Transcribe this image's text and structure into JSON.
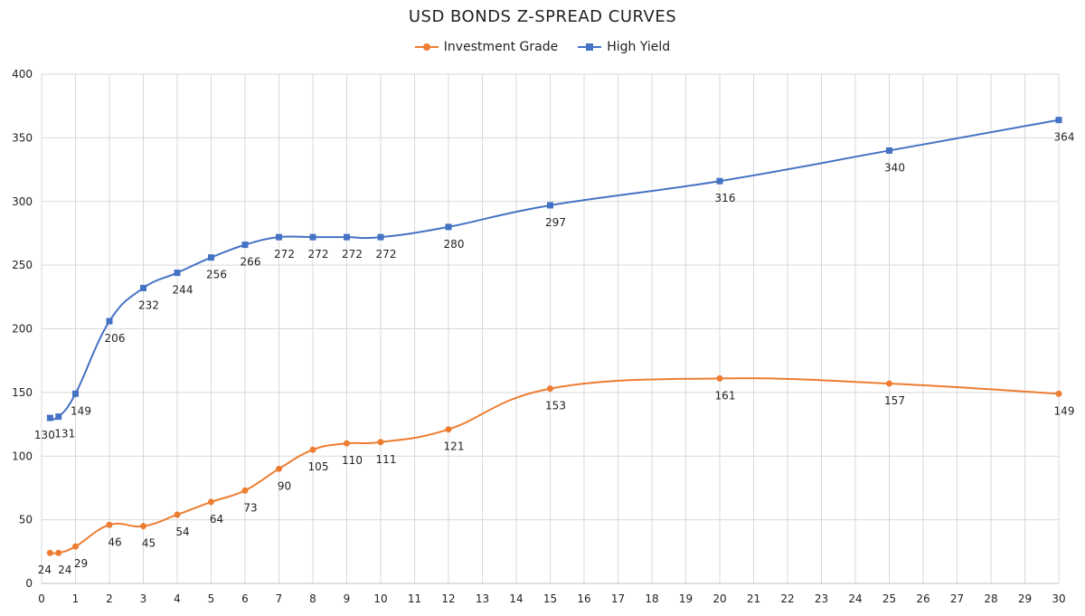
{
  "chart_data": {
    "type": "line",
    "title": "USD BONDS Z-SPREAD CURVES",
    "xlabel": "",
    "ylabel": "",
    "xlim": [
      0,
      30
    ],
    "ylim": [
      0,
      400
    ],
    "x_ticks": [
      0,
      1,
      2,
      3,
      4,
      5,
      6,
      7,
      8,
      9,
      10,
      11,
      12,
      13,
      14,
      15,
      16,
      17,
      18,
      19,
      20,
      21,
      22,
      23,
      24,
      25,
      26,
      27,
      28,
      29,
      30
    ],
    "y_ticks": [
      0,
      50,
      100,
      150,
      200,
      250,
      300,
      350,
      400
    ],
    "grid": true,
    "legend_position": "top-center",
    "series": [
      {
        "name": "Investment Grade",
        "color": "#ED7D31",
        "marker": "circle",
        "x": [
          0.25,
          0.5,
          1,
          2,
          3,
          4,
          5,
          6,
          7,
          8,
          9,
          10,
          12,
          15,
          20,
          25,
          30
        ],
        "values": [
          24,
          24,
          29,
          46,
          45,
          54,
          64,
          73,
          90,
          105,
          110,
          111,
          121,
          153,
          161,
          157,
          149
        ],
        "labels": [
          "24",
          "24",
          "29",
          "46",
          "45",
          "54",
          "64",
          "73",
          "90",
          "105",
          "110",
          "111",
          "121",
          "153",
          "161",
          "157",
          "149"
        ]
      },
      {
        "name": "High Yield",
        "color": "#4472C4",
        "marker": "square",
        "x": [
          0.25,
          0.5,
          1,
          2,
          3,
          4,
          5,
          6,
          7,
          8,
          9,
          10,
          12,
          15,
          20,
          25,
          30
        ],
        "values": [
          130,
          131,
          149,
          206,
          232,
          244,
          256,
          266,
          272,
          272,
          272,
          272,
          280,
          297,
          316,
          340,
          364
        ],
        "labels": [
          "130",
          "131",
          "149",
          "206",
          "232",
          "244",
          "256",
          "266",
          "272",
          "272",
          "272",
          "272",
          "280",
          "297",
          "316",
          "340",
          "364"
        ]
      }
    ]
  }
}
